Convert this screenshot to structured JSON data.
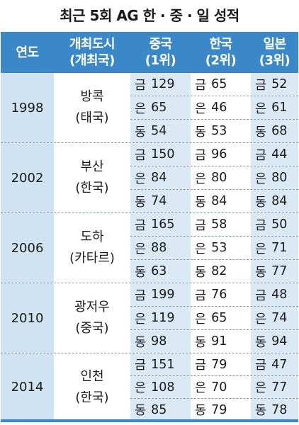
{
  "title": "최근 5회 AG 한 · 중 · 일 성적",
  "headers": {
    "year": "연도",
    "host_line1": "개최도시",
    "host_line2": "(개최국)",
    "china_line1": "중국",
    "china_line2": "(1위)",
    "korea_line1": "한국",
    "korea_line2": "(2위)",
    "japan_line1": "일본",
    "japan_line2": "(3위)"
  },
  "medal_labels": [
    "금",
    "은",
    "동"
  ],
  "rows": [
    {
      "year": "1998",
      "city": "방콕",
      "country": "(태국)",
      "china": [
        "129",
        "65",
        "54"
      ],
      "korea": [
        "65",
        "46",
        "53"
      ],
      "japan": [
        "52",
        "61",
        "68"
      ]
    },
    {
      "year": "2002",
      "city": "부산",
      "country": "(한국)",
      "china": [
        "150",
        "84",
        "74"
      ],
      "korea": [
        "96",
        "80",
        "84"
      ],
      "japan": [
        "44",
        "80",
        "84"
      ]
    },
    {
      "year": "2006",
      "city": "도하",
      "country": "(카타르)",
      "china": [
        "165",
        "88",
        "63"
      ],
      "korea": [
        "58",
        "53",
        "82"
      ],
      "japan": [
        "50",
        "71",
        "77"
      ]
    },
    {
      "year": "2010",
      "city": "광저우",
      "country": "(중국)",
      "china": [
        "199",
        "119",
        "98"
      ],
      "korea": [
        "76",
        "65",
        "91"
      ],
      "japan": [
        "48",
        "74",
        "94"
      ]
    },
    {
      "year": "2014",
      "city": "인천",
      "country": "(한국)",
      "china": [
        "151",
        "108",
        "85"
      ],
      "korea": [
        "79",
        "70",
        "79"
      ],
      "japan": [
        "47",
        "77",
        "78"
      ]
    }
  ]
}
